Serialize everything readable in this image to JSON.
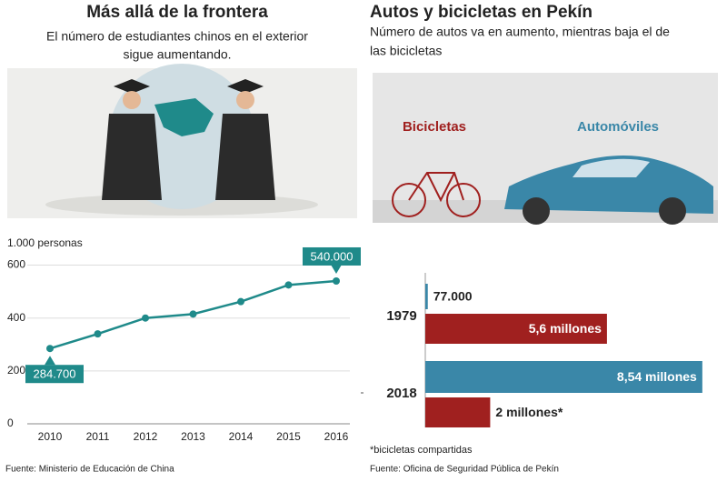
{
  "chart_data": [
    {
      "type": "line",
      "title": "Más allá de la frontera",
      "subtitle": [
        "El número de estudiantes chinos en el exterior",
        "sigue aumentando."
      ],
      "y_label": "1.000 personas",
      "categories": [
        "2010",
        "2011",
        "2012",
        "2013",
        "2014",
        "2015",
        "2016"
      ],
      "values": [
        284.7,
        340,
        400,
        415,
        462,
        525,
        540
      ],
      "value_labels": [
        "284.700",
        null,
        null,
        null,
        null,
        null,
        "540.000"
      ],
      "color": "#1f8a8a",
      "ylim": [
        0,
        650
      ],
      "yticks": [
        0,
        200,
        400,
        600
      ],
      "grid": true,
      "source": "Fuente: Ministerio de Educación de China"
    },
    {
      "type": "hbar",
      "title": "Autos y bicicletas en Pekín",
      "subtitle": [
        "Número de autos va en aumento, mientras baja el de",
        "las bicicletas"
      ],
      "categories": [
        "1979",
        "2018"
      ],
      "series": [
        {
          "name": "Automóviles",
          "color": "#3a87a8",
          "values": [
            0.077,
            8.54
          ],
          "value_labels": [
            "77.000",
            "8,54 millones"
          ]
        },
        {
          "name": "Bicicletas",
          "color": "#a0201f",
          "values": [
            5.6,
            2
          ],
          "value_labels": [
            "5,6 millones",
            "2 millones*"
          ]
        }
      ],
      "xlim": [
        0,
        8.6
      ],
      "note": "*bicicletas compartidas",
      "source": "Fuente: Oficina de Seguridad Pública de Pekín"
    }
  ]
}
